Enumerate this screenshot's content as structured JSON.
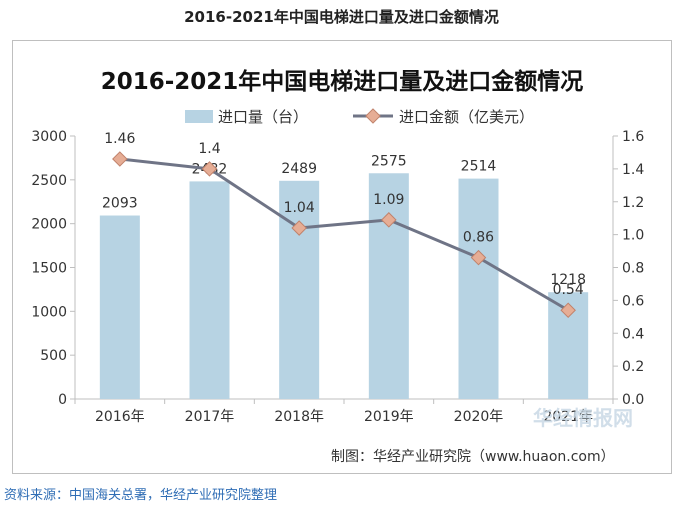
{
  "page_title": "2016-2021年中国电梯进口量及进口金额情况",
  "source_note": "资料来源：中国海关总署，华经产业研究院整理",
  "credit": "制图：华经产业研究院（www.huaon.com）",
  "watermark": "华经情报网",
  "colors": {
    "bar": "#b7d3e3",
    "line": "#6f7486",
    "marker": "#e6ad95",
    "marker_border": "#c0826b"
  },
  "chart_data": {
    "type": "bar+line",
    "title": "2016-2021年中国电梯进口量及进口金额情况",
    "categories": [
      "2016年",
      "2017年",
      "2018年",
      "2019年",
      "2020年",
      "2021年"
    ],
    "series": [
      {
        "name": "进口量（台）",
        "type": "bar",
        "axis": "left",
        "values": [
          2093,
          2482,
          2489,
          2575,
          2514,
          1218
        ]
      },
      {
        "name": "进口金额（亿美元）",
        "type": "line",
        "axis": "right",
        "values": [
          1.46,
          1.4,
          1.04,
          1.09,
          0.86,
          0.54
        ]
      }
    ],
    "y_left": {
      "min": 0,
      "max": 3000,
      "ticks": [
        "0",
        "500",
        "1000",
        "1500",
        "2000",
        "2500",
        "3000"
      ]
    },
    "y_right": {
      "min": 0,
      "max": 1.6,
      "ticks": [
        "0.0",
        "0.2",
        "0.4",
        "0.6",
        "0.8",
        "1.0",
        "1.2",
        "1.4",
        "1.6"
      ]
    },
    "bar_labels": [
      "2093",
      "2482",
      "2489",
      "2575",
      "2514",
      "1218"
    ],
    "line_labels": [
      "1.46",
      "1.4",
      "1.04",
      "1.09",
      "0.86",
      "0.54"
    ],
    "legend": [
      "进口量（台）",
      "进口金额（亿美元）"
    ],
    "legend_position": "top"
  }
}
